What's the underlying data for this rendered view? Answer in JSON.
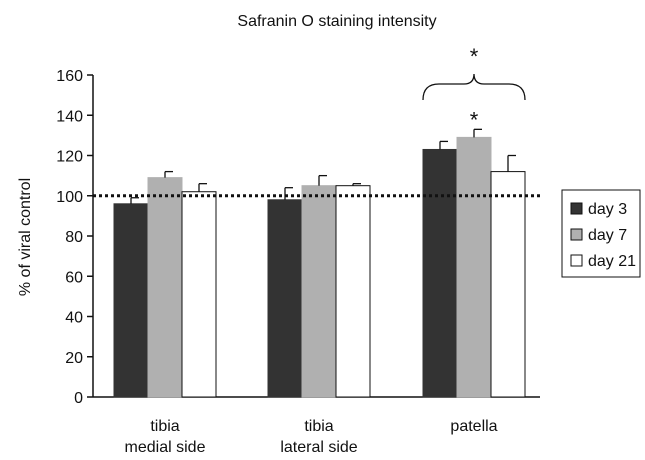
{
  "chart_data": {
    "type": "bar",
    "title": "Safranin O staining intensity",
    "ylabel": "% of viral control",
    "xlabel": "",
    "ylim": [
      0,
      160
    ],
    "yticks": [
      "0",
      "20",
      "40",
      "60",
      "80",
      "100",
      "120",
      "140",
      "160"
    ],
    "categories": [
      [
        "tibia",
        "medial side"
      ],
      [
        "tibia",
        "lateral side"
      ],
      [
        "patella"
      ]
    ],
    "series": [
      {
        "name": "day 3",
        "color": "#333333",
        "values": [
          96,
          98,
          123
        ],
        "errors": [
          3,
          6,
          4
        ]
      },
      {
        "name": "day 7",
        "color": "#b0b0b0",
        "values": [
          109,
          105,
          129
        ],
        "errors": [
          3,
          5,
          4
        ]
      },
      {
        "name": "day 21",
        "color": "#ffffff",
        "values": [
          102,
          105,
          112
        ],
        "errors": [
          4,
          1,
          8
        ]
      }
    ],
    "reference_line": {
      "value": 100,
      "style": "dotted"
    },
    "legend_position": "right",
    "annotations": [
      {
        "text": "*",
        "target": "patella day 7"
      },
      {
        "text": "*",
        "target": "patella group (bracket)"
      }
    ]
  }
}
